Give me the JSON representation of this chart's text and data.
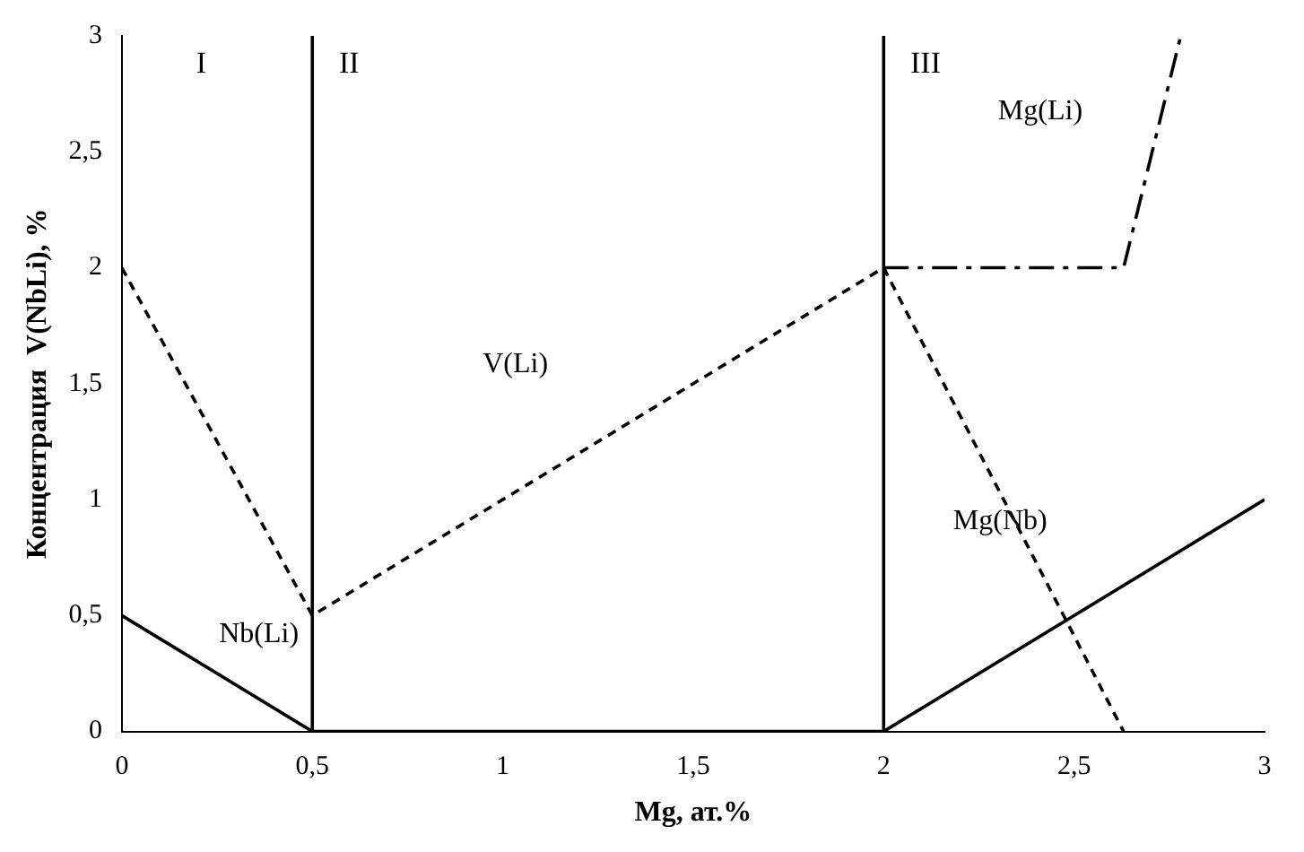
{
  "chart_data": {
    "type": "line",
    "xlabel": "Mg, ат.%",
    "ylabel": "Концентрация  V(NbLi), %",
    "xlim": [
      0,
      3
    ],
    "ylim": [
      0,
      3
    ],
    "xticks": [
      0,
      {
        "value": 0.5,
        "label": "0,5"
      },
      1,
      {
        "value": 1.5,
        "label": "1,5"
      },
      2,
      {
        "value": 2.5,
        "label": "2,5"
      },
      3
    ],
    "yticks": [
      0,
      {
        "value": 0.5,
        "label": "0,5"
      },
      1,
      {
        "value": 1.5,
        "label": "1,5"
      },
      2,
      {
        "value": 2.5,
        "label": "2,5"
      },
      3
    ],
    "grid": false,
    "legend": false,
    "marker": "none",
    "series": [
      {
        "name": "Nb(Li)",
        "color": "#000000",
        "line_style": "solid",
        "x": [
          0,
          0.5,
          2,
          3
        ],
        "values": [
          0.5,
          0,
          0,
          1
        ]
      },
      {
        "name": "V(Li)",
        "color": "#000000",
        "line_style": "dashed",
        "x": [
          0,
          0.5,
          2
        ],
        "values": [
          2,
          0.5,
          2
        ]
      },
      {
        "name": "Mg(Nb)",
        "color": "#000000",
        "line_style": "dashed",
        "x": [
          2,
          2.63
        ],
        "values": [
          2,
          0
        ]
      },
      {
        "name": "Mg(Li)",
        "color": "#000000",
        "line_style": "dashdot",
        "x": [
          2,
          2.63,
          2.78
        ],
        "values": [
          2,
          2,
          3
        ]
      }
    ],
    "ref_lines": [
      {
        "axis": "x",
        "value": 0.5,
        "color": "#000000",
        "line_style": "solid"
      },
      {
        "axis": "x",
        "value": 2,
        "color": "#000000",
        "line_style": "solid"
      }
    ],
    "annotations": [
      "I",
      "II",
      "III"
    ]
  }
}
